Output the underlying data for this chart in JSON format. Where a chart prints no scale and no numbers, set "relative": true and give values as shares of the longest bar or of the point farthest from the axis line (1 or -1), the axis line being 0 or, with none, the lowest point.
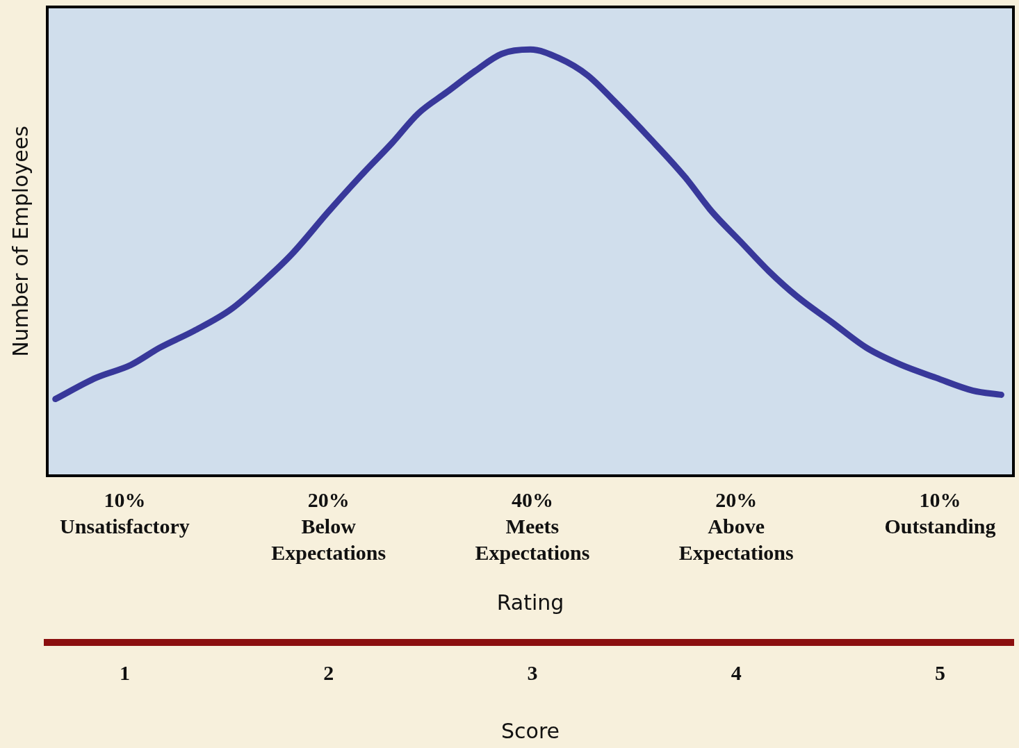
{
  "chart_data": {
    "type": "line",
    "relative": true,
    "ylabel": "Number of Employees",
    "xlabel": "Score",
    "x": [
      0.66,
      0.86,
      1.03,
      1.17,
      1.34,
      1.52,
      1.69,
      1.82,
      2.0,
      2.17,
      2.31,
      2.44,
      2.58,
      2.72,
      2.85,
      2.99,
      3.13,
      3.27,
      3.4,
      3.58,
      3.75,
      3.88,
      4.02,
      4.16,
      4.3,
      4.47,
      4.64,
      4.81,
      4.98,
      5.16,
      5.3
    ],
    "series": [
      {
        "color": "#38389a",
        "values": [
          0.18,
          0.23,
          0.26,
          0.3,
          0.34,
          0.39,
          0.46,
          0.52,
          0.62,
          0.71,
          0.78,
          0.85,
          0.9,
          0.95,
          0.99,
          1,
          0.98,
          0.94,
          0.88,
          0.79,
          0.7,
          0.62,
          0.55,
          0.48,
          0.42,
          0.36,
          0.3,
          0.26,
          0.23,
          0.2,
          0.19
        ]
      }
    ],
    "xlim": [
      0.62,
      5.36
    ],
    "xticks": [
      1,
      2,
      3,
      4,
      5
    ],
    "annotations": [
      "10%\nUnsatisfactory",
      "20%\nBelow\nExpectations",
      "40%\nMeets\nExpectations",
      "20%\nAbove\nExpectations",
      "10%\nOutstanding",
      "Rating"
    ]
  }
}
